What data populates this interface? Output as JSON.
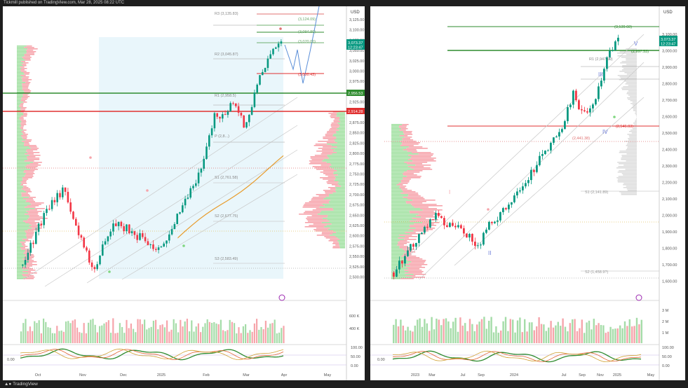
{
  "header": {
    "text": "Tickmill published on TradingView.com, Mar 28, 2025 08:22 UTC"
  },
  "footer": {
    "logo_text": "TradingView"
  },
  "currency": "USD",
  "left_chart": {
    "x_labels": [
      "Oct",
      "Nov",
      "Dec",
      "2025",
      "Feb",
      "Mar",
      "Apr",
      "May"
    ],
    "y_labels": [
      "3,125.00",
      "3,100.00",
      "3,075.00",
      "3,050.00",
      "3,025.00",
      "3,000.00",
      "2,975.00",
      "2,950.00",
      "2,925.00",
      "2,900.00",
      "2,875.00",
      "2,850.00",
      "2,825.00",
      "2,800.00",
      "2,775.00",
      "2,750.00",
      "2,725.00",
      "2,700.00",
      "2,675.00",
      "2,650.00",
      "2,625.00",
      "2,600.00",
      "2,575.00",
      "2,550.00",
      "2,525.00",
      "2,500.00"
    ],
    "price_badge": "3,073.37",
    "timer_badge": "12:23:47",
    "green_level_badge": "2,956.53",
    "red_level_badge": "2,914.28",
    "pivot_labels": [
      "R3 (3,135.83)",
      "R2 (3,045.87)",
      "R1 (2,958.5)",
      "P (2,8...)",
      "S1 (2,761.58)",
      "S2 (2,677.75)",
      "S3 (2,583.49)"
    ],
    "target_labels": [
      "(3,124.09)",
      "(3,094.80)",
      "(3,070.00)",
      "(3,000.43)"
    ],
    "volume_labels": [
      "600 K",
      "400 K"
    ],
    "osc_labels": [
      "100.00",
      "50.00",
      "0.00"
    ],
    "osc_left_value": "0.00"
  },
  "right_chart": {
    "x_labels": [
      "2023",
      "Mar",
      "Jul",
      "Sep",
      "2024",
      "Jul",
      "Sep",
      "Nov",
      "2025",
      "May"
    ],
    "y_labels": [
      "3,100.00",
      "3,000.00",
      "2,900.00",
      "2,800.00",
      "2,700.00",
      "2,600.00",
      "2,500.00",
      "2,400.00",
      "2,300.00",
      "2,200.00",
      "2,100.00",
      "2,000.00",
      "1,900.00",
      "1,800.00",
      "1,700.00",
      "1,600.00"
    ],
    "price_badge": "3,073.37",
    "timer_badge": "12:23:47",
    "level_labels": [
      "(3,139.60)",
      "(2,997.53)",
      "R1 (2,947.90)",
      "(2,546.03)",
      "(2,441.38)",
      "S1 (2,141.89)",
      "S2 (1,458.9?)"
    ],
    "wave_labels": [
      "I",
      "II",
      "III",
      "IV",
      "V"
    ],
    "volume_labels": [
      "3 M",
      "2 M",
      "1 M"
    ],
    "osc_labels": [
      "100.00",
      "50.00",
      "0.00"
    ],
    "osc_left_value": "0.00"
  },
  "colors": {
    "up": "#26a69a",
    "up_bright": "#089981",
    "down": "#f23645",
    "pivot_green": "#2e8b2e",
    "pivot_red": "#e03030"
  }
}
